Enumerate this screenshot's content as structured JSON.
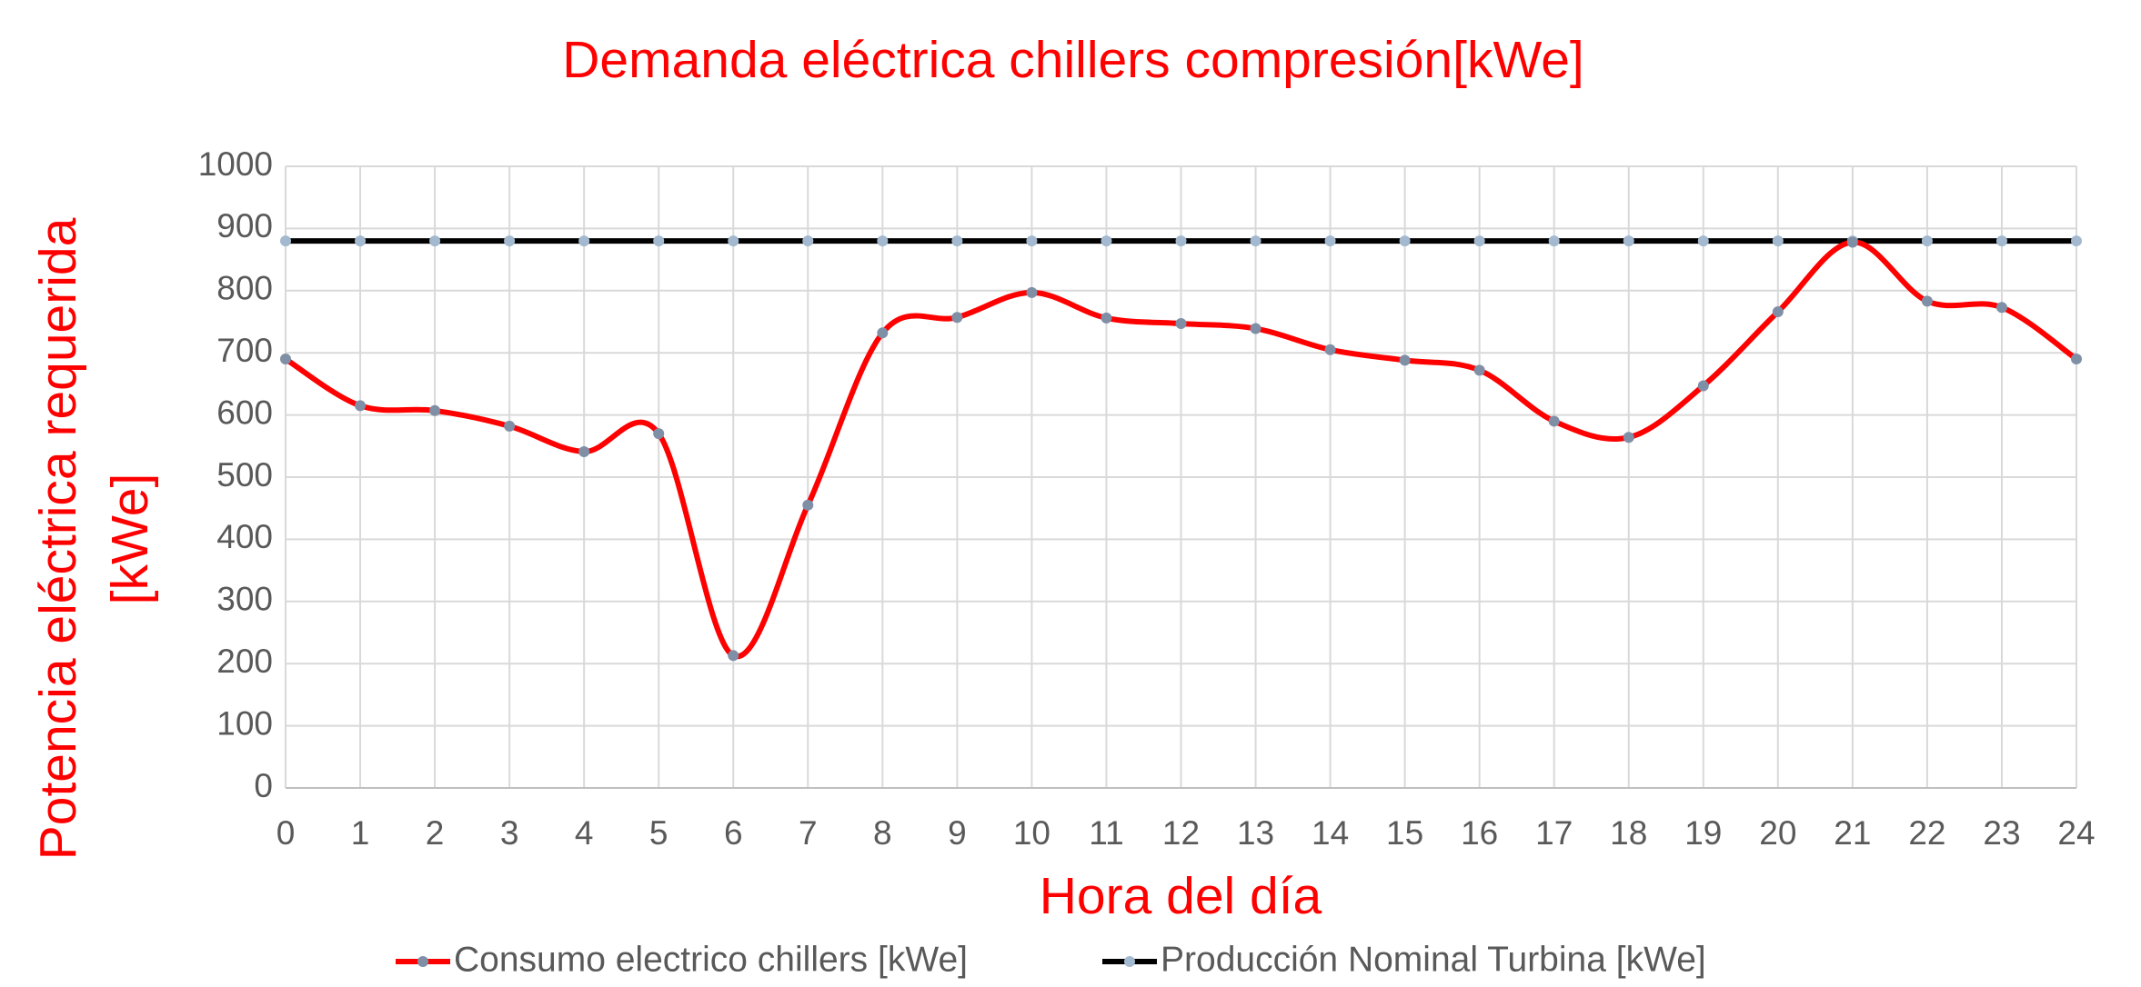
{
  "chart_data": {
    "type": "line",
    "title": "Demanda eléctrica chillers compresión[kWe]",
    "xlabel": "Hora del día",
    "ylabel": [
      "Potencia eléctrica  requerida",
      "[kWe]"
    ],
    "x": [
      0,
      1,
      2,
      3,
      4,
      5,
      6,
      7,
      8,
      9,
      10,
      11,
      12,
      13,
      14,
      15,
      16,
      17,
      18,
      19,
      20,
      21,
      22,
      23,
      24
    ],
    "xlim": [
      0,
      24
    ],
    "xticks": [
      0,
      1,
      2,
      3,
      4,
      5,
      6,
      7,
      8,
      9,
      10,
      11,
      12,
      13,
      14,
      15,
      16,
      17,
      18,
      19,
      20,
      21,
      22,
      23,
      24
    ],
    "ylim": [
      0,
      1000
    ],
    "yticks": [
      0,
      100,
      200,
      300,
      400,
      500,
      600,
      700,
      800,
      900,
      1000
    ],
    "grid": true,
    "legend": "bottom",
    "series": [
      {
        "name": "Consumo electrico chillers [kWe]",
        "color": "#ff0000",
        "marker_color": "#7f8fa6",
        "smooth": true,
        "values": [
          690,
          615,
          607,
          582,
          541,
          570,
          213,
          455,
          732,
          757,
          797,
          756,
          747,
          739,
          705,
          688,
          672,
          590,
          564,
          647,
          766,
          878,
          783,
          773,
          690
        ]
      },
      {
        "name": "Producción Nominal Turbina [kWe]",
        "color": "#000000",
        "marker_color": "#a3b9cf",
        "smooth": false,
        "values": [
          880,
          880,
          880,
          880,
          880,
          880,
          880,
          880,
          880,
          880,
          880,
          880,
          880,
          880,
          880,
          880,
          880,
          880,
          880,
          880,
          880,
          880,
          880,
          880,
          880
        ]
      }
    ]
  }
}
